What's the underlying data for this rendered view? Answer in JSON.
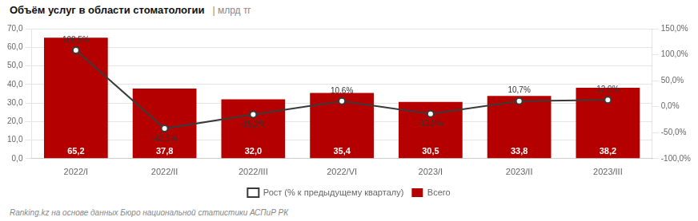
{
  "chart_data": {
    "type": "bar",
    "title": "Объём услуг в области стоматологии",
    "subtitle": "| млрд тг",
    "footnote": "Ranking.kz на основе данных Бюро национальной статистики АСПиР РК",
    "categories": [
      "2022/I",
      "2022/II",
      "2022/III",
      "2022/VI",
      "2023/I",
      "2023/II",
      "2023/III"
    ],
    "series": [
      {
        "name": "Всего",
        "type": "bar",
        "color": "#b50000",
        "values": [
          65.2,
          37.8,
          32.0,
          35.4,
          30.5,
          33.8,
          38.2
        ],
        "value_labels": [
          "65,2",
          "37,8",
          "32,0",
          "35,4",
          "30,5",
          "33,8",
          "38,2"
        ],
        "data_labels": true
      },
      {
        "name": "Рост (% к предыдущему кварталу)",
        "type": "line",
        "color": "#3a3a3a",
        "axis": "y2",
        "marker": "circle",
        "values": [
          108.5,
          -42.1,
          -15.2,
          10.6,
          -13.9,
          10.7,
          12.9
        ],
        "value_labels": [
          "108,5%",
          "-42,1%",
          "-15,2%",
          "10,6%",
          "-13,9%",
          "10,7%",
          "12,9%"
        ],
        "data_labels": true
      }
    ],
    "ylim": [
      0,
      70
    ],
    "yticks": [
      {
        "value": 0,
        "label": "0,0"
      },
      {
        "value": 10,
        "label": "10,0"
      },
      {
        "value": 20,
        "label": "20,0"
      },
      {
        "value": 30,
        "label": "30,0"
      },
      {
        "value": 40,
        "label": "40,0"
      },
      {
        "value": 50,
        "label": "50,0"
      },
      {
        "value": 60,
        "label": "60,0"
      },
      {
        "value": 70,
        "label": "70,0"
      }
    ],
    "y2lim": [
      -100,
      150
    ],
    "y2ticks": [
      {
        "value": -100,
        "label": "-100,0%"
      },
      {
        "value": -50,
        "label": "-50,0%"
      },
      {
        "value": 0,
        "label": "0,0%"
      },
      {
        "value": 50,
        "label": "50,0%"
      },
      {
        "value": 100,
        "label": "100,0%"
      },
      {
        "value": 150,
        "label": "150,0%"
      }
    ],
    "grid": true,
    "legend": "bottom"
  }
}
